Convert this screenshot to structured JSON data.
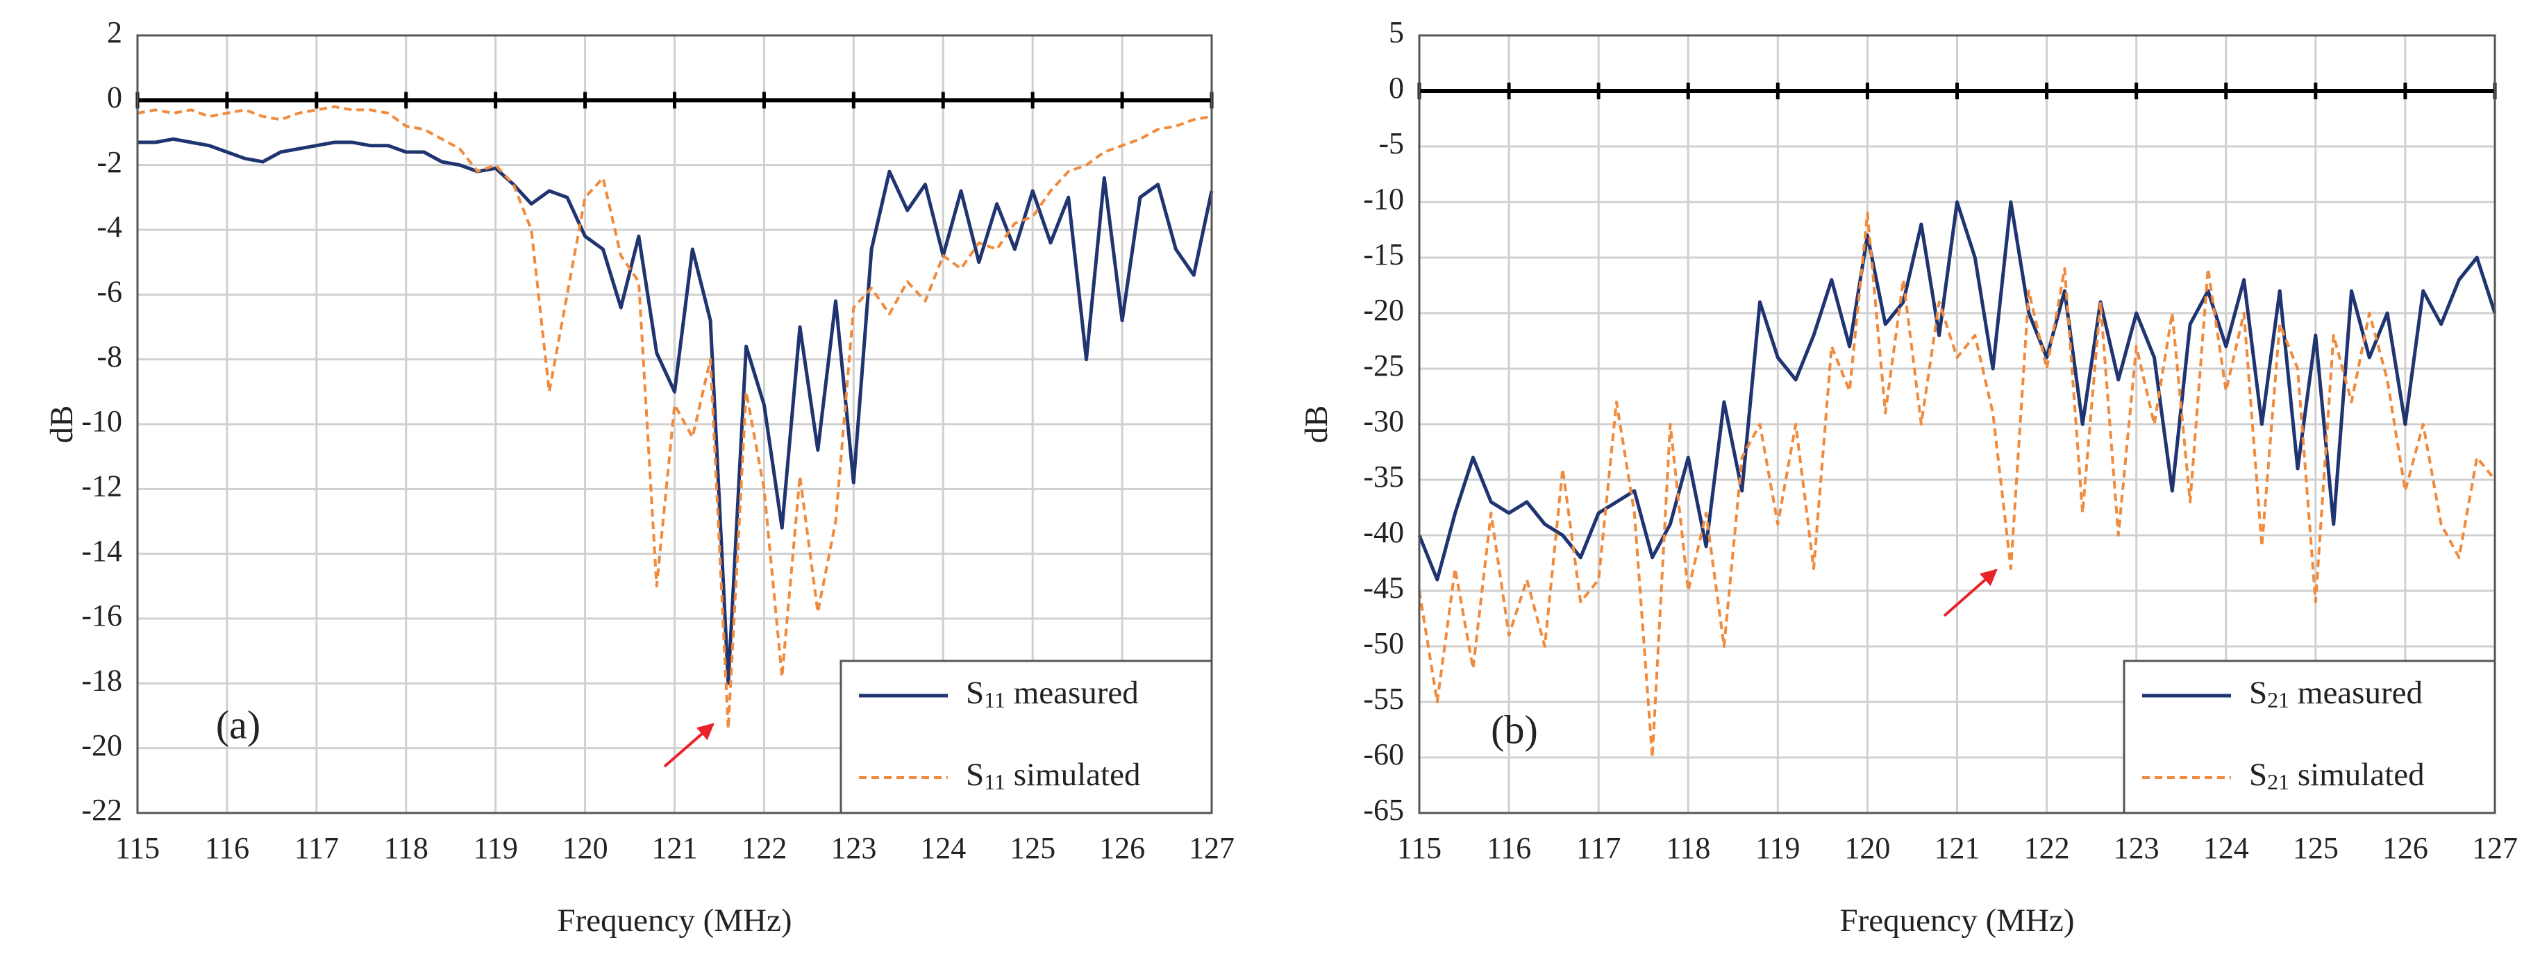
{
  "chart_data": [
    {
      "type": "line",
      "label": "(a)",
      "xlabel": "Frequency (MHz)",
      "ylabel": "dB",
      "xlim": [
        115,
        127
      ],
      "ylim": [
        -22,
        2
      ],
      "xticks": [
        115,
        116,
        117,
        118,
        119,
        120,
        121,
        122,
        123,
        124,
        125,
        126,
        127
      ],
      "yticks": [
        -22,
        -20,
        -18,
        -16,
        -14,
        -12,
        -10,
        -8,
        -6,
        -4,
        -2,
        0,
        2
      ],
      "grid": true,
      "legend": "lower right",
      "x": [
        115,
        115.2,
        115.4,
        115.6,
        115.8,
        116,
        116.2,
        116.4,
        116.6,
        116.8,
        117,
        117.2,
        117.4,
        117.6,
        117.8,
        118,
        118.2,
        118.4,
        118.6,
        118.8,
        119,
        119.2,
        119.4,
        119.6,
        119.8,
        120,
        120.2,
        120.4,
        120.6,
        120.8,
        121,
        121.2,
        121.4,
        121.6,
        121.8,
        122,
        122.2,
        122.4,
        122.6,
        122.8,
        123,
        123.2,
        123.4,
        123.6,
        123.8,
        124,
        124.2,
        124.4,
        124.6,
        124.8,
        125,
        125.2,
        125.4,
        125.6,
        125.8,
        126,
        126.2,
        126.4,
        126.6,
        126.8,
        127
      ],
      "series": [
        {
          "name": "S11 measured",
          "color": "#1f3470",
          "style": "solid",
          "values": [
            -1.3,
            -1.3,
            -1.2,
            -1.3,
            -1.4,
            -1.6,
            -1.8,
            -1.9,
            -1.6,
            -1.5,
            -1.4,
            -1.3,
            -1.3,
            -1.4,
            -1.4,
            -1.6,
            -1.6,
            -1.9,
            -2.0,
            -2.2,
            -2.1,
            -2.6,
            -3.2,
            -2.8,
            -3.0,
            -4.2,
            -4.6,
            -6.4,
            -4.2,
            -7.8,
            -9.0,
            -4.6,
            -6.8,
            -18.0,
            -7.6,
            -9.4,
            -13.2,
            -7.0,
            -10.8,
            -6.2,
            -11.8,
            -4.6,
            -2.2,
            -3.4,
            -2.6,
            -4.8,
            -2.8,
            -5.0,
            -3.2,
            -4.6,
            -2.8,
            -4.4,
            -3.0,
            -8.0,
            -2.4,
            -6.8,
            -3.0,
            -2.6,
            -4.6,
            -5.4,
            -2.8
          ]
        },
        {
          "name": "S11 simulated",
          "color": "#f08a3c",
          "style": "dashed",
          "values": [
            -0.4,
            -0.3,
            -0.4,
            -0.3,
            -0.5,
            -0.4,
            -0.3,
            -0.5,
            -0.6,
            -0.4,
            -0.3,
            -0.2,
            -0.3,
            -0.3,
            -0.4,
            -0.8,
            -0.9,
            -1.2,
            -1.5,
            -2.2,
            -2.0,
            -2.6,
            -4.0,
            -9.0,
            -6.0,
            -3.0,
            -2.4,
            -4.8,
            -5.6,
            -15.0,
            -9.4,
            -10.4,
            -8.0,
            -19.4,
            -9.0,
            -12.0,
            -17.8,
            -11.6,
            -15.8,
            -13.0,
            -6.4,
            -5.8,
            -6.6,
            -5.6,
            -6.2,
            -4.8,
            -5.2,
            -4.4,
            -4.6,
            -3.8,
            -3.6,
            -2.8,
            -2.2,
            -2.0,
            -1.6,
            -1.4,
            -1.2,
            -0.9,
            -0.8,
            -0.6,
            -0.5
          ]
        }
      ]
    },
    {
      "type": "line",
      "label": "(b)",
      "xlabel": "Frequency (MHz)",
      "ylabel": "dB",
      "xlim": [
        115,
        127
      ],
      "ylim": [
        -65,
        5
      ],
      "xticks": [
        115,
        116,
        117,
        118,
        119,
        120,
        121,
        122,
        123,
        124,
        125,
        126,
        127
      ],
      "yticks": [
        -65,
        -60,
        -55,
        -50,
        -45,
        -40,
        -35,
        -30,
        -25,
        -20,
        -15,
        -10,
        -5,
        0,
        5
      ],
      "grid": true,
      "legend": "lower right",
      "x": [
        115,
        115.2,
        115.4,
        115.6,
        115.8,
        116,
        116.2,
        116.4,
        116.6,
        116.8,
        117,
        117.2,
        117.4,
        117.6,
        117.8,
        118,
        118.2,
        118.4,
        118.6,
        118.8,
        119,
        119.2,
        119.4,
        119.6,
        119.8,
        120,
        120.2,
        120.4,
        120.6,
        120.8,
        121,
        121.2,
        121.4,
        121.6,
        121.8,
        122,
        122.2,
        122.4,
        122.6,
        122.8,
        123,
        123.2,
        123.4,
        123.6,
        123.8,
        124,
        124.2,
        124.4,
        124.6,
        124.8,
        125,
        125.2,
        125.4,
        125.6,
        125.8,
        126,
        126.2,
        126.4,
        126.6,
        126.8,
        127
      ],
      "series": [
        {
          "name": "S21 measured",
          "color": "#1f3470",
          "style": "solid",
          "values": [
            -40,
            -44,
            -38,
            -33,
            -37,
            -38,
            -37,
            -39,
            -40,
            -42,
            -38,
            -37,
            -36,
            -42,
            -39,
            -33,
            -41,
            -28,
            -36,
            -19,
            -24,
            -26,
            -22,
            -17,
            -23,
            -13,
            -21,
            -19,
            -12,
            -22,
            -10,
            -15,
            -25,
            -10,
            -20,
            -24,
            -18,
            -30,
            -19,
            -26,
            -20,
            -24,
            -36,
            -21,
            -18,
            -23,
            -17,
            -30,
            -18,
            -34,
            -22,
            -39,
            -18,
            -24,
            -20,
            -30,
            -18,
            -21,
            -17,
            -15,
            -20
          ]
        },
        {
          "name": "S21 simulated",
          "color": "#f08a3c",
          "style": "dashed",
          "values": [
            -45,
            -55,
            -43,
            -52,
            -38,
            -49,
            -44,
            -50,
            -34,
            -46,
            -44,
            -28,
            -38,
            -60,
            -30,
            -45,
            -38,
            -50,
            -33,
            -30,
            -39,
            -30,
            -43,
            -23,
            -27,
            -11,
            -29,
            -17,
            -30,
            -19,
            -24,
            -22,
            -29,
            -43,
            -18,
            -25,
            -16,
            -38,
            -19,
            -40,
            -23,
            -30,
            -20,
            -37,
            -16,
            -27,
            -20,
            -41,
            -21,
            -25,
            -46,
            -22,
            -28,
            -20,
            -26,
            -36,
            -30,
            -39,
            -42,
            -33,
            -35
          ]
        }
      ]
    }
  ]
}
